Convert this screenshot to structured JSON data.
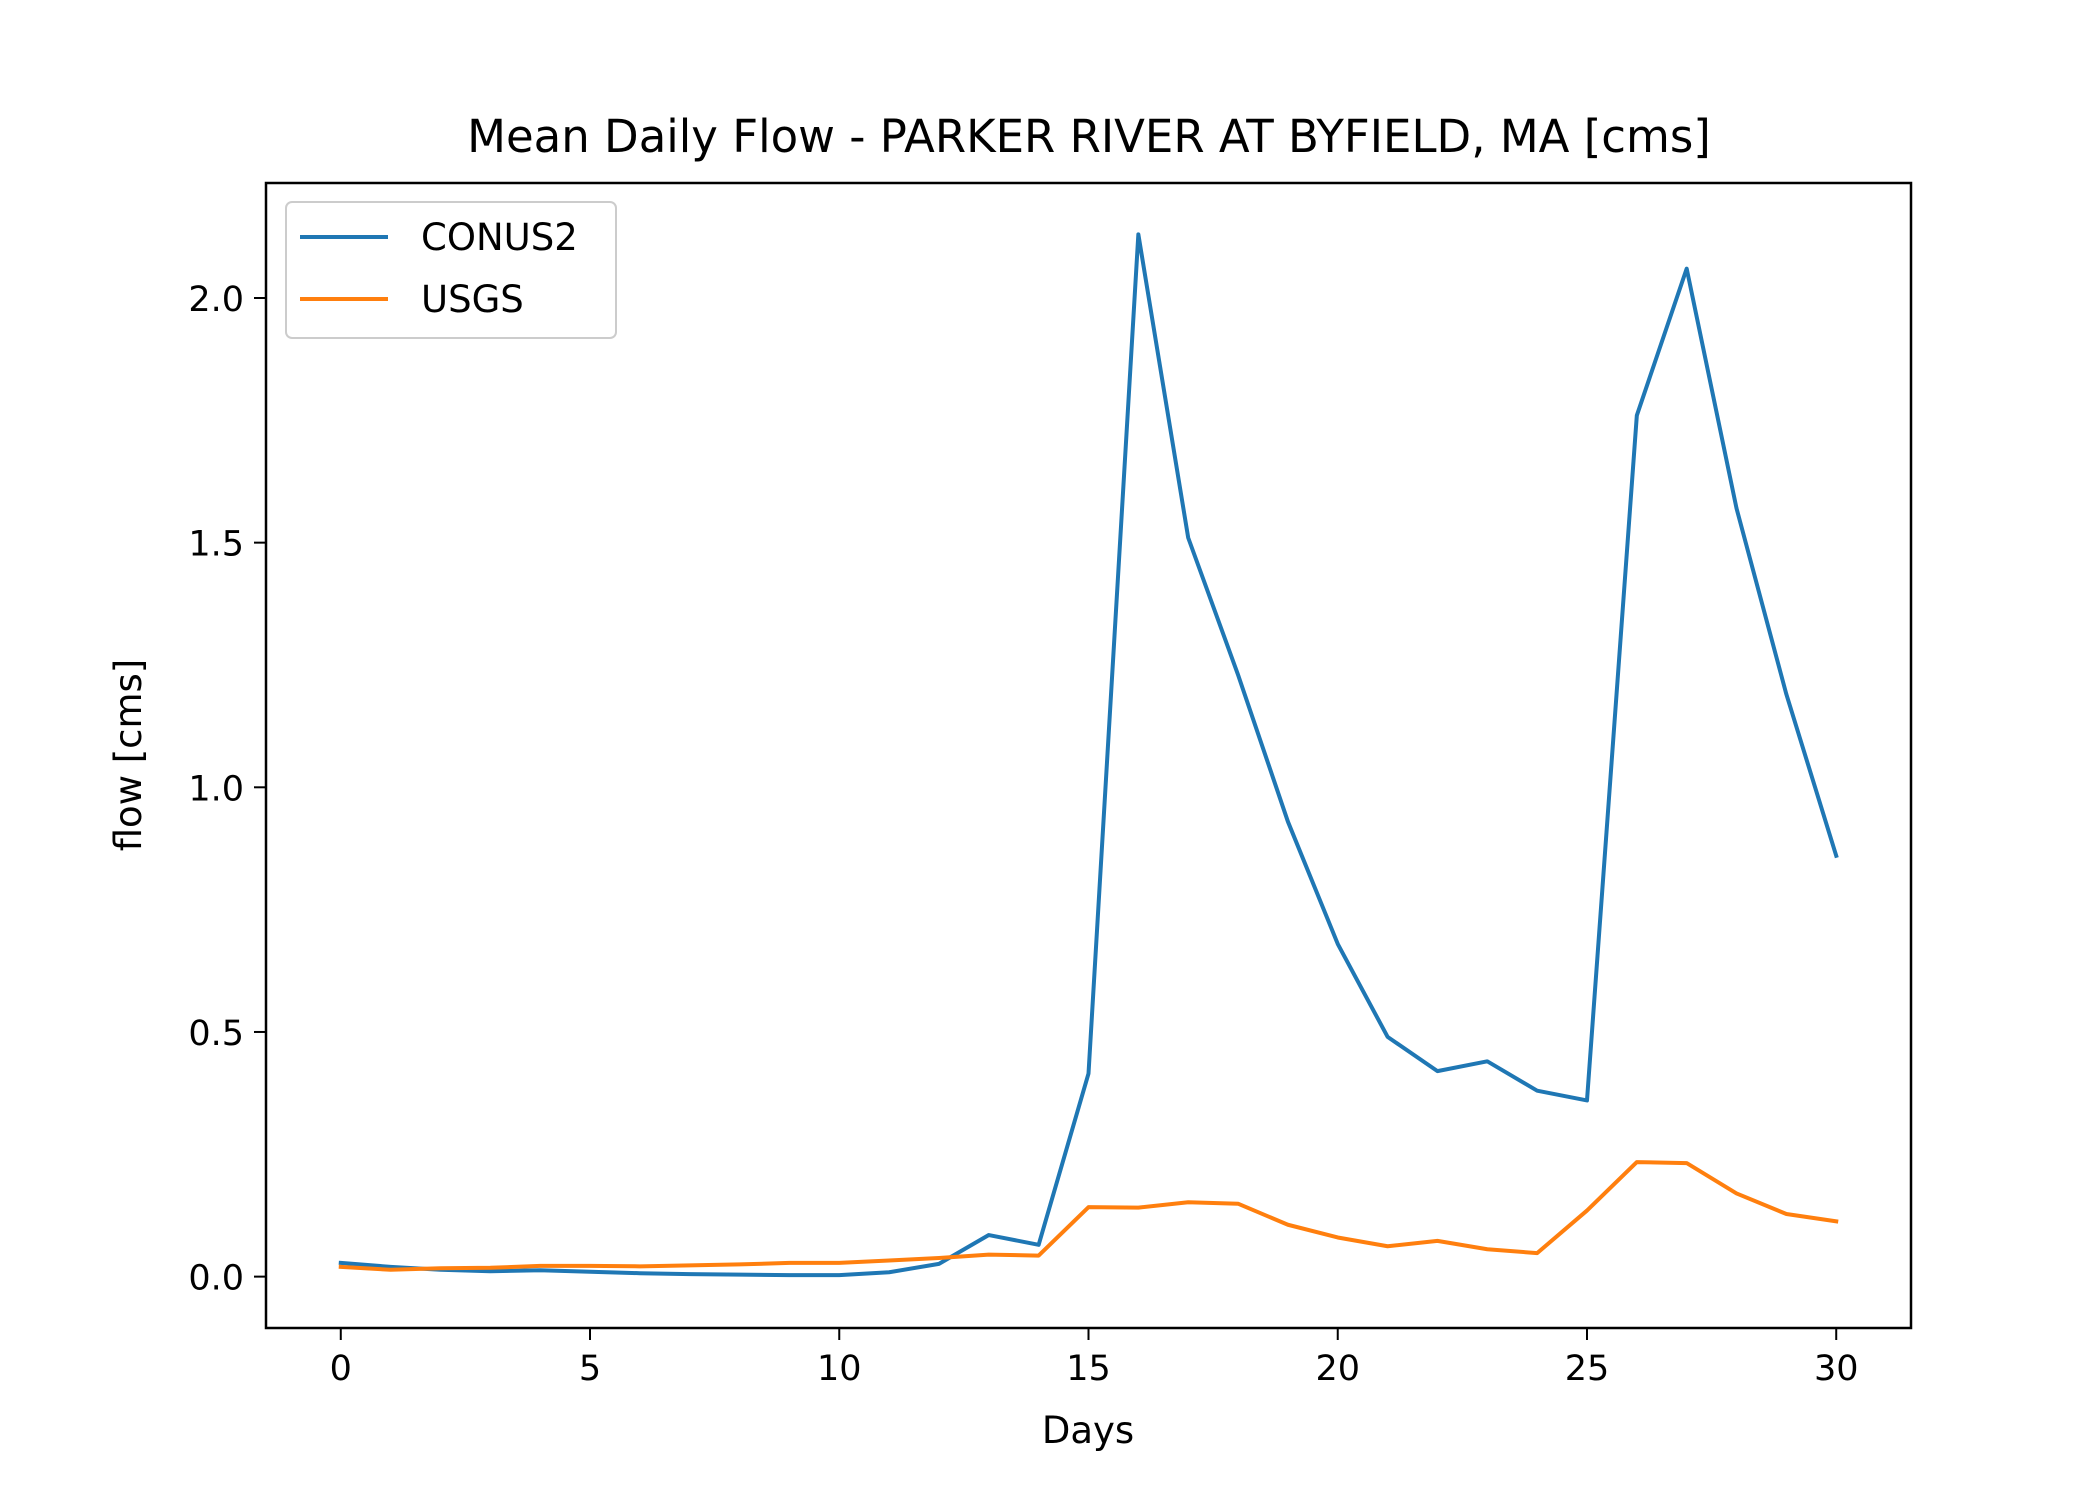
{
  "chart_data": {
    "type": "line",
    "title": "Mean Daily Flow - PARKER RIVER AT BYFIELD, MA [cms]",
    "xlabel": "Days",
    "ylabel": "flow [cms]",
    "xlim": [
      -1.5,
      31.5
    ],
    "ylim": [
      -0.105,
      2.235
    ],
    "xticks": [
      0,
      5,
      10,
      15,
      20,
      25,
      30
    ],
    "xtick_labels": [
      "0",
      "5",
      "10",
      "15",
      "20",
      "25",
      "30"
    ],
    "yticks": [
      0.0,
      0.5,
      1.0,
      1.5,
      2.0
    ],
    "ytick_labels": [
      "0.0",
      "0.5",
      "1.0",
      "1.5",
      "2.0"
    ],
    "grid": false,
    "legend_position": "upper-left",
    "x": [
      0,
      1,
      2,
      3,
      4,
      5,
      6,
      7,
      8,
      9,
      10,
      11,
      12,
      13,
      14,
      15,
      16,
      17,
      18,
      19,
      20,
      21,
      22,
      23,
      24,
      25,
      26,
      27,
      28,
      29,
      30
    ],
    "series": [
      {
        "name": "CONUS2",
        "color": "#1f77b4",
        "values": [
          0.028,
          0.02,
          0.014,
          0.011,
          0.013,
          0.01,
          0.007,
          0.005,
          0.004,
          0.003,
          0.003,
          0.009,
          0.026,
          0.085,
          0.065,
          0.415,
          2.13,
          1.51,
          1.23,
          0.93,
          0.68,
          0.49,
          0.42,
          0.44,
          0.38,
          0.36,
          1.76,
          2.06,
          1.57,
          1.19,
          0.86
        ]
      },
      {
        "name": "USGS",
        "color": "#ff7f0e",
        "values": [
          0.02,
          0.014,
          0.017,
          0.018,
          0.022,
          0.022,
          0.021,
          0.023,
          0.025,
          0.028,
          0.028,
          0.033,
          0.038,
          0.045,
          0.043,
          0.142,
          0.141,
          0.152,
          0.149,
          0.106,
          0.08,
          0.062,
          0.073,
          0.056,
          0.048,
          0.135,
          0.234,
          0.232,
          0.17,
          0.128,
          0.113
        ]
      }
    ]
  }
}
